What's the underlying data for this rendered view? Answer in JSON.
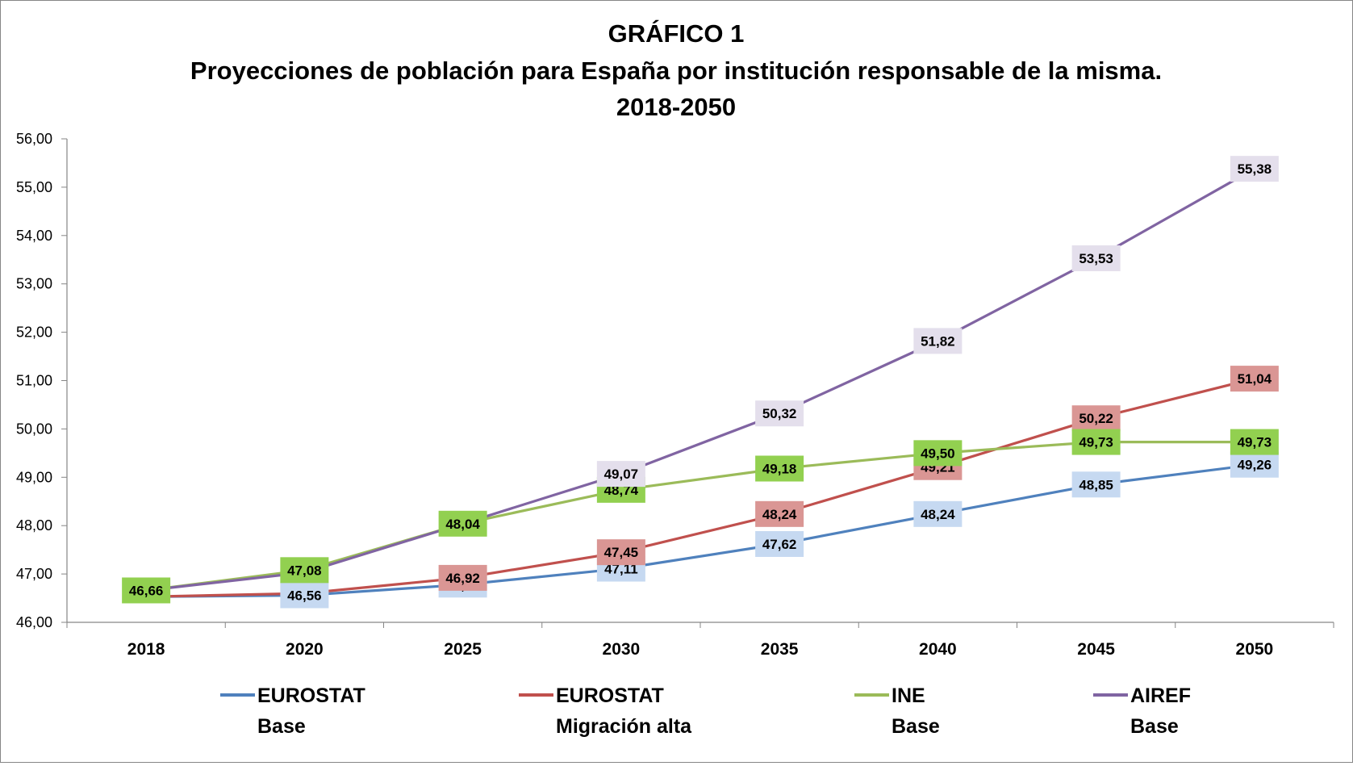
{
  "chart_data": {
    "type": "line",
    "title": [
      "GRÁFICO 1",
      "Proyecciones de población para España por institución responsable de la misma.",
      "2018-2050"
    ],
    "xlabel": "",
    "ylabel": "",
    "categories": [
      "2018",
      "2020",
      "2025",
      "2030",
      "2035",
      "2040",
      "2045",
      "2050"
    ],
    "ylim": [
      46,
      56
    ],
    "yticks": [
      "46,00",
      "47,00",
      "48,00",
      "49,00",
      "50,00",
      "51,00",
      "52,00",
      "53,00",
      "54,00",
      "55,00",
      "56,00"
    ],
    "grid": false,
    "legend_position": "bottom",
    "series": [
      {
        "key": "eurostat_base",
        "name": [
          "EUROSTAT",
          "Base"
        ],
        "color": "#4f81bd",
        "label_bg": "#c6d9f1",
        "values": [
          46.53,
          46.56,
          46.78,
          47.11,
          47.62,
          48.24,
          48.85,
          49.26
        ],
        "labels": [
          null,
          "46,56",
          "46,78",
          "47,11",
          "47,62",
          "48,24",
          "48,85",
          "49,26"
        ]
      },
      {
        "key": "eurostat_migracion_alta",
        "name": [
          "EUROSTAT",
          "Migración alta"
        ],
        "color": "#c0504d",
        "label_bg": "#da9694",
        "values": [
          46.53,
          46.6,
          46.92,
          47.45,
          48.24,
          49.21,
          50.22,
          51.04
        ],
        "labels": [
          null,
          null,
          "46,92",
          "47,45",
          "48,24",
          "49,21",
          "50,22",
          "51,04"
        ]
      },
      {
        "key": "ine_base",
        "name": [
          "INE",
          "Base"
        ],
        "color": "#9bbb59",
        "label_bg": "#92d050",
        "values": [
          46.66,
          47.08,
          48.04,
          48.74,
          49.18,
          49.5,
          49.73,
          49.73
        ],
        "labels": [
          "46,66",
          "47,08",
          "48,04",
          "48,74",
          "49,18",
          "49,50",
          "49,73",
          "49,73"
        ]
      },
      {
        "key": "airef_base",
        "name": [
          "AIREF",
          "Base"
        ],
        "color": "#8064a2",
        "label_bg": "#e4dfec",
        "values": [
          46.66,
          47.03,
          48.04,
          49.07,
          50.32,
          51.82,
          53.53,
          55.38
        ],
        "labels": [
          null,
          null,
          null,
          "49,07",
          "50,32",
          "51,82",
          "53,53",
          "55,38"
        ]
      }
    ]
  }
}
